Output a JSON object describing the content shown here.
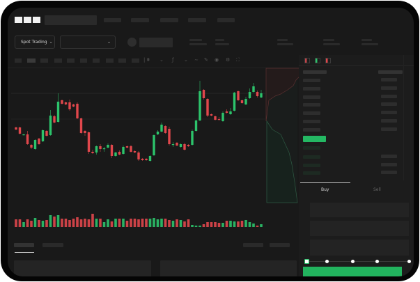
{
  "header": {
    "logo_text": "OKX",
    "trading_mode_label": "Spot Trading",
    "chevron_icon": "chevron-down-icon"
  },
  "order_form": {
    "tabs": [
      {
        "label": "Buy",
        "active": true
      },
      {
        "label": "Sell",
        "active": false
      }
    ],
    "slider_value_percent": 0,
    "slider_stops": [
      0,
      25,
      50,
      75,
      100
    ],
    "submit_color": "#22b35e"
  },
  "colors": {
    "up": "#2cc36b",
    "down": "#e0474c",
    "background": "#191919"
  },
  "chart_data": {
    "type": "candlestick",
    "candles_ohlc": [
      [
        68,
        69,
        64,
        65
      ],
      [
        68,
        69,
        58,
        59
      ],
      [
        57,
        58.5,
        56.5,
        58
      ],
      [
        58,
        63,
        43,
        44
      ],
      [
        43,
        44,
        37,
        39
      ],
      [
        37,
        51,
        36,
        50
      ],
      [
        52,
        53,
        43,
        44
      ],
      [
        48,
        65,
        47,
        64
      ],
      [
        63,
        64,
        55,
        56
      ],
      [
        57,
        93,
        56,
        85
      ],
      [
        84,
        86,
        74,
        75
      ],
      [
        76,
        117,
        75,
        105
      ],
      [
        107,
        108,
        101,
        102
      ],
      [
        104,
        105,
        100,
        101
      ],
      [
        104,
        108,
        92,
        94
      ],
      [
        101,
        102,
        97,
        98
      ],
      [
        102,
        104,
        80,
        81
      ],
      [
        81,
        82,
        59,
        60
      ],
      [
        63,
        64,
        56,
        60
      ],
      [
        61,
        62,
        30,
        33
      ],
      [
        33,
        36,
        30,
        31
      ],
      [
        32,
        42,
        29,
        41
      ],
      [
        41,
        44,
        33,
        37
      ],
      [
        37,
        40,
        33,
        38
      ],
      [
        39,
        45,
        38,
        43
      ],
      [
        43,
        44,
        24,
        27
      ],
      [
        27,
        33,
        26,
        32
      ],
      [
        33,
        35,
        28,
        29
      ],
      [
        30,
        42,
        29,
        40
      ],
      [
        41,
        42,
        38,
        39
      ],
      [
        41,
        43,
        32,
        33
      ],
      [
        34,
        35,
        31,
        32
      ],
      [
        32,
        34,
        20,
        22
      ],
      [
        23,
        24,
        20,
        21
      ],
      [
        23,
        24,
        20,
        21
      ],
      [
        20,
        28,
        19,
        27
      ],
      [
        28,
        58,
        27,
        57
      ],
      [
        58,
        64,
        57,
        62
      ],
      [
        62,
        75,
        61,
        72
      ],
      [
        70,
        71,
        59,
        60
      ],
      [
        66,
        69,
        42,
        44
      ],
      [
        43,
        47,
        40,
        44
      ],
      [
        46,
        47,
        41,
        42
      ],
      [
        40,
        45,
        39,
        44
      ],
      [
        44,
        46,
        35,
        36
      ],
      [
        43,
        44,
        40,
        41
      ],
      [
        43,
        65,
        42,
        63
      ],
      [
        63,
        79,
        62,
        78
      ],
      [
        78,
        135,
        77,
        120
      ],
      [
        122,
        123,
        108,
        110
      ],
      [
        109,
        110,
        83,
        85
      ],
      [
        87,
        88,
        84,
        85
      ],
      [
        84,
        85,
        78,
        79
      ],
      [
        80,
        83,
        78,
        79
      ],
      [
        77,
        91,
        76,
        89
      ],
      [
        91,
        94,
        88,
        89
      ],
      [
        87,
        96,
        86,
        91
      ],
      [
        92,
        119,
        91,
        118
      ],
      [
        120,
        121,
        106,
        107
      ],
      [
        107,
        108,
        102,
        103
      ],
      [
        101,
        112,
        100,
        109
      ],
      [
        110,
        124,
        109,
        119
      ],
      [
        119,
        132,
        118,
        127
      ],
      [
        119,
        121,
        111,
        113
      ],
      [
        111,
        122,
        110,
        117
      ]
    ],
    "volume": [
      11,
      11,
      7,
      11,
      9,
      13,
      10,
      9,
      10,
      17,
      15,
      17,
      12,
      12,
      10,
      12,
      14,
      11,
      12,
      11,
      19,
      12,
      12,
      7,
      11,
      8,
      12,
      12,
      12,
      9,
      12,
      12,
      11,
      12,
      12,
      12,
      13,
      11,
      12,
      12,
      10,
      9,
      11,
      10,
      8,
      11,
      3,
      2,
      2,
      4,
      7,
      7,
      7,
      6,
      6,
      9,
      9,
      8,
      8,
      9,
      10,
      7,
      5,
      2,
      4
    ],
    "grid": true
  }
}
